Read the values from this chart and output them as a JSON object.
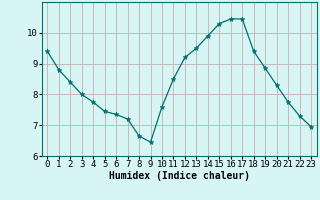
{
  "x": [
    0,
    1,
    2,
    3,
    4,
    5,
    6,
    7,
    8,
    9,
    10,
    11,
    12,
    13,
    14,
    15,
    16,
    17,
    18,
    19,
    20,
    21,
    22,
    23
  ],
  "y": [
    9.4,
    8.8,
    8.4,
    8.0,
    7.75,
    7.45,
    7.35,
    7.2,
    6.65,
    6.45,
    7.6,
    8.5,
    9.2,
    9.5,
    9.9,
    10.3,
    10.45,
    10.45,
    9.4,
    8.85,
    8.3,
    7.75,
    7.3,
    6.95
  ],
  "line_color": "#007070",
  "marker": "*",
  "marker_size": 3.5,
  "bg_color": "#d8f5f5",
  "grid_color": "#c8b8b8",
  "xlabel": "Humidex (Indice chaleur)",
  "ylim": [
    6,
    11
  ],
  "xlim": [
    -0.5,
    23.5
  ],
  "yticks": [
    6,
    7,
    8,
    9,
    10
  ],
  "xticks": [
    0,
    1,
    2,
    3,
    4,
    5,
    6,
    7,
    8,
    9,
    10,
    11,
    12,
    13,
    14,
    15,
    16,
    17,
    18,
    19,
    20,
    21,
    22,
    23
  ],
  "xlabel_fontsize": 7,
  "tick_fontsize": 6.5,
  "spine_color": "#007070"
}
